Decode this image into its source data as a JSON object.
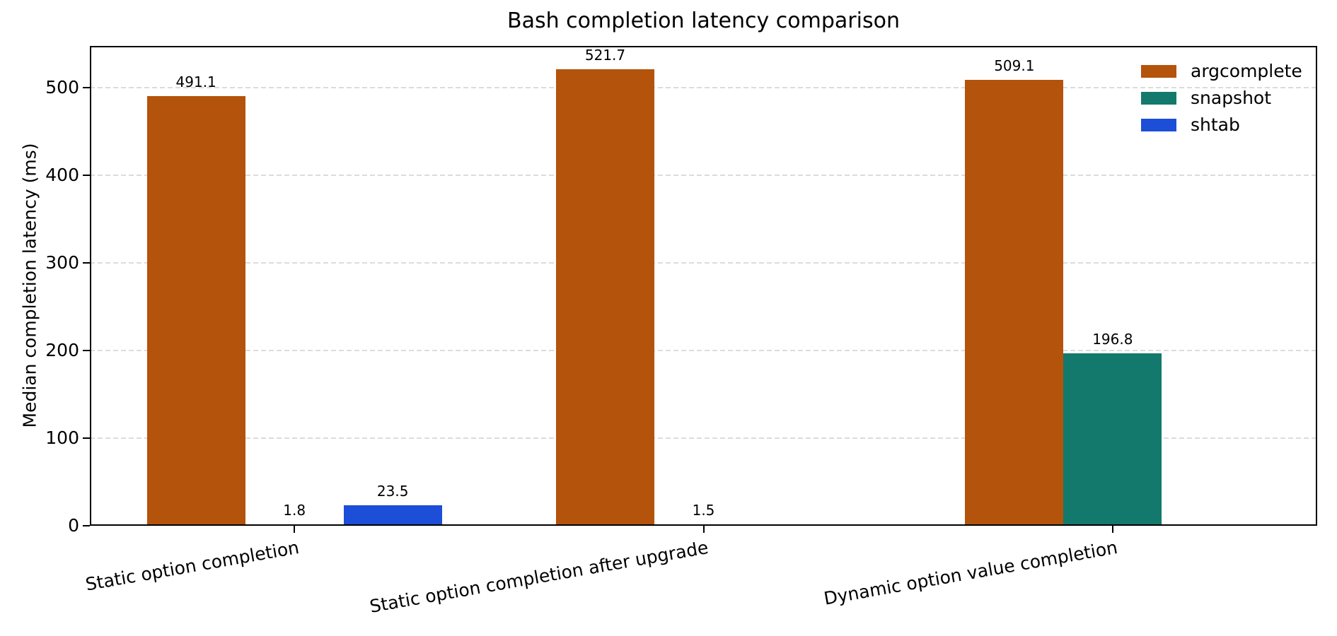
{
  "chart_data": {
    "type": "bar",
    "title": "Bash completion latency comparison",
    "ylabel": "Median completion latency (ms)",
    "xlabel": "",
    "categories": [
      "Static option completion",
      "Static option completion after upgrade",
      "Dynamic option value completion"
    ],
    "series": [
      {
        "name": "argcomplete",
        "color": "#b4530b",
        "values": [
          491.1,
          521.7,
          509.1
        ]
      },
      {
        "name": "snapshot",
        "color": "#12796c",
        "values": [
          1.8,
          1.5,
          196.8
        ]
      },
      {
        "name": "shtab",
        "color": "#1d4ed8",
        "values": [
          23.5,
          null,
          null
        ]
      }
    ],
    "value_labels": [
      [
        "491.1",
        "521.7",
        "509.1"
      ],
      [
        "1.8",
        "1.5",
        "196.8"
      ],
      [
        "23.5",
        null,
        null
      ]
    ],
    "yticks": [
      "0",
      "100",
      "200",
      "300",
      "400",
      "500"
    ],
    "ytick_values": [
      0,
      100,
      200,
      300,
      400,
      500
    ],
    "ylim": [
      0,
      548
    ],
    "grid": {
      "axis": "y",
      "style": "dashed",
      "color": "#dcdcdc"
    },
    "legend": {
      "position": "upper right",
      "frame": false
    },
    "xtick_rotation_deg": 10,
    "axis_color": "#000000",
    "background_color": "#ffffff"
  }
}
